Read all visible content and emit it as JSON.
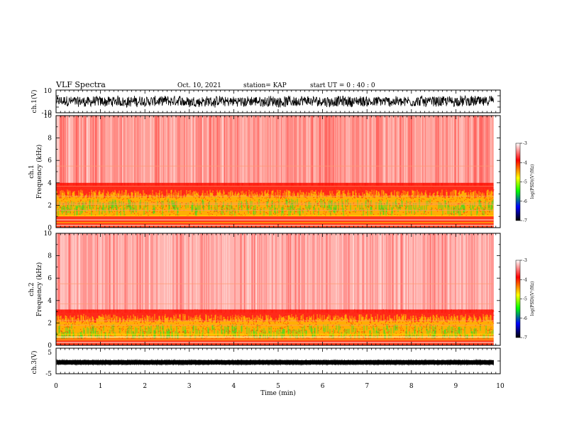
{
  "header": {
    "title": "VLF Spectra",
    "date": "Oct. 10, 2021",
    "station": "station= KAP",
    "start": "start  UT =   0 : 40 : 0"
  },
  "chart_data": [
    {
      "type": "line",
      "name": "ch1-waveform",
      "ylabel": "ch.1(V)",
      "ylim": [
        -10,
        10
      ],
      "ytick_labels": [
        "10",
        "-10"
      ],
      "xlim": [
        0,
        10
      ],
      "trace_range_approx": [
        -6,
        6
      ],
      "trace_end_min": 9.85,
      "color": "#000000"
    },
    {
      "type": "heatmap",
      "name": "ch1-spectrogram",
      "ylabel_line1": "ch.1",
      "ylabel_line2": "Frequency  (kHz)",
      "xlim": [
        0,
        10
      ],
      "ylim": [
        0,
        10
      ],
      "ytick_labels": [
        "0",
        "2",
        "4",
        "6",
        "8",
        "10"
      ],
      "data_end_min": 9.85,
      "description_levels": {
        "above_4kHz": "high noise, mostly red/white",
        "1_to_3.5kHz": "yellow-green band",
        "below_1kHz": "horizontal tone lines"
      },
      "tone_lines_khz": [
        0.2,
        0.45,
        0.7,
        1.05,
        1.55,
        2.05,
        2.2,
        2.8,
        3.7,
        5.5
      ],
      "colorbar": {
        "label": "log(PSD)(V²/Hz)",
        "range": [
          -7,
          -3
        ],
        "tick_labels": [
          "-3",
          "-4",
          "-5",
          "-6",
          "-7"
        ],
        "colors": [
          "#ffffff",
          "#ff0000",
          "#ffff00",
          "#00ff00",
          "#0000ff",
          "#000000"
        ]
      }
    },
    {
      "type": "heatmap",
      "name": "ch2-spectrogram",
      "ylabel_line1": "ch.2",
      "ylabel_line2": "Frequency  (kHz)",
      "xlim": [
        0,
        10
      ],
      "ylim": [
        0,
        10
      ],
      "ytick_labels": [
        "0",
        "2",
        "4",
        "6",
        "8",
        "10"
      ],
      "data_end_min": 9.85,
      "tone_lines_khz": [
        0.25,
        0.5,
        0.75,
        1.0,
        1.8,
        2.2,
        3.7,
        5.5
      ],
      "colorbar": {
        "label": "log(PSD)(V²/Hz)",
        "range": [
          -7,
          -3
        ],
        "tick_labels": [
          "-3",
          "-4",
          "-5",
          "-6",
          "-7"
        ],
        "colors": [
          "#ffffff",
          "#ff0000",
          "#ffff00",
          "#00ff00",
          "#0000ff",
          "#000000"
        ]
      }
    },
    {
      "type": "line",
      "name": "ch3-waveform",
      "ylabel": "ch.3(V)",
      "ylim": [
        -5,
        5
      ],
      "ytick_labels": [
        "5",
        "-5"
      ],
      "xlim": [
        0,
        10
      ],
      "trace_level_approx": 0,
      "trace_end_min": 9.85,
      "xlabel": "Time  (min)",
      "xtick_labels": [
        "0",
        "1",
        "2",
        "3",
        "4",
        "5",
        "6",
        "7",
        "8",
        "9",
        "10"
      ],
      "color": "#000000"
    }
  ]
}
